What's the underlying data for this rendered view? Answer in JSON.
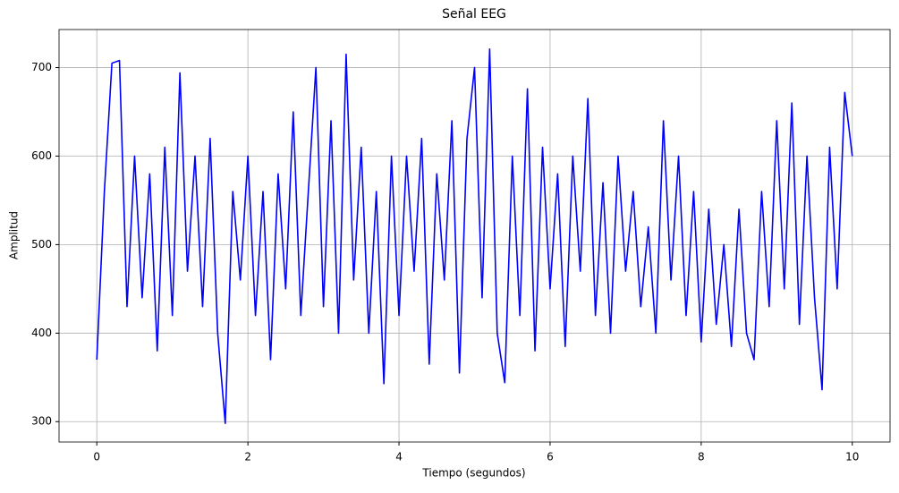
{
  "chart_data": {
    "type": "line",
    "title": "Señal EEG",
    "x_label": "Tiempo (segundos)",
    "y_label": "Amplitud",
    "x": [
      0.0,
      0.1,
      0.2,
      0.3,
      0.4,
      0.5,
      0.6,
      0.7,
      0.8,
      0.9,
      1.0,
      1.1,
      1.2,
      1.3,
      1.4,
      1.5,
      1.6,
      1.7,
      1.8,
      1.9,
      2.0,
      2.1,
      2.2,
      2.3,
      2.4,
      2.5,
      2.6,
      2.7,
      2.8,
      2.9,
      3.0,
      3.1,
      3.2,
      3.3,
      3.4,
      3.5,
      3.6,
      3.7,
      3.8,
      3.9,
      4.0,
      4.1,
      4.2,
      4.3,
      4.4,
      4.5,
      4.6,
      4.7,
      4.8,
      4.9,
      5.0,
      5.1,
      5.2,
      5.3,
      5.4,
      5.5,
      5.6,
      5.7,
      5.8,
      5.9,
      6.0,
      6.1,
      6.2,
      6.3,
      6.4,
      6.5,
      6.6,
      6.7,
      6.8,
      6.9,
      7.0,
      7.1,
      7.2,
      7.3,
      7.4,
      7.5,
      7.6,
      7.7,
      7.8,
      7.9,
      8.0,
      8.1,
      8.2,
      8.3,
      8.4,
      8.5,
      8.6,
      8.7,
      8.8,
      8.9,
      9.0,
      9.1,
      9.2,
      9.3,
      9.4,
      9.5,
      9.6,
      9.7,
      9.8,
      9.9,
      10.0
    ],
    "values": [
      370,
      560,
      705,
      708,
      430,
      600,
      440,
      580,
      380,
      610,
      420,
      694,
      470,
      600,
      430,
      620,
      400,
      298,
      560,
      460,
      600,
      420,
      560,
      370,
      580,
      450,
      650,
      420,
      560,
      700,
      430,
      640,
      400,
      715,
      460,
      610,
      400,
      560,
      343,
      600,
      420,
      600,
      470,
      620,
      365,
      580,
      460,
      640,
      355,
      620,
      700,
      440,
      721,
      400,
      344,
      600,
      420,
      676,
      380,
      610,
      450,
      580,
      385,
      600,
      470,
      665,
      420,
      570,
      400,
      600,
      470,
      560,
      430,
      520,
      400,
      640,
      460,
      600,
      420,
      560,
      390,
      540,
      410,
      500,
      385,
      540,
      400,
      370,
      560,
      430,
      640,
      450,
      660,
      410,
      600,
      440,
      336,
      610,
      450,
      672,
      600
    ],
    "color": "#0000ff",
    "xlim": [
      -0.5,
      10.5
    ],
    "xticks": [
      0,
      2,
      4,
      6,
      8,
      10
    ],
    "ylim": [
      277,
      743
    ],
    "yticks": [
      300,
      400,
      500,
      600,
      700
    ],
    "grid": true
  }
}
